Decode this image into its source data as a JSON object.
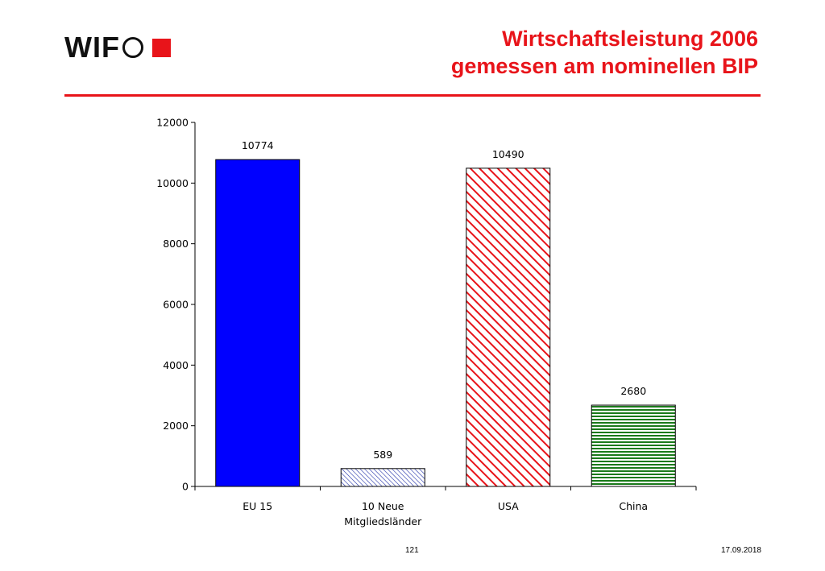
{
  "header": {
    "logo_text": "WIF",
    "title_line1": "Wirtschaftsleistung 2006",
    "title_line2": "gemessen am nominellen BIP"
  },
  "colors": {
    "brand_red": "#e8141a",
    "eu15": "#0000ff",
    "neue": "#1f2fa8",
    "usa": "#e8141a",
    "china": "#1a7a1a"
  },
  "chart_data": {
    "type": "bar",
    "categories": [
      "EU 15",
      "10 Neue Mitgliedsländer",
      "USA",
      "China"
    ],
    "category_label_lines": [
      [
        "EU 15"
      ],
      [
        "10 Neue",
        "Mitgliedsländer"
      ],
      [
        "USA"
      ],
      [
        "China"
      ]
    ],
    "values": [
      10774,
      589,
      10490,
      2680
    ],
    "data_labels": [
      "10774",
      "589",
      "10490",
      "2680"
    ],
    "patterns": [
      "solid",
      "diagonal-fine",
      "diagonal-stripes",
      "horizontal-stripes"
    ],
    "ylim": [
      0,
      12000
    ],
    "yticks": [
      0,
      2000,
      4000,
      6000,
      8000,
      10000,
      12000
    ],
    "title": "",
    "xlabel": "",
    "ylabel": "",
    "grid": false
  },
  "footer": {
    "page_number": "121",
    "date": "17.09.2018"
  }
}
